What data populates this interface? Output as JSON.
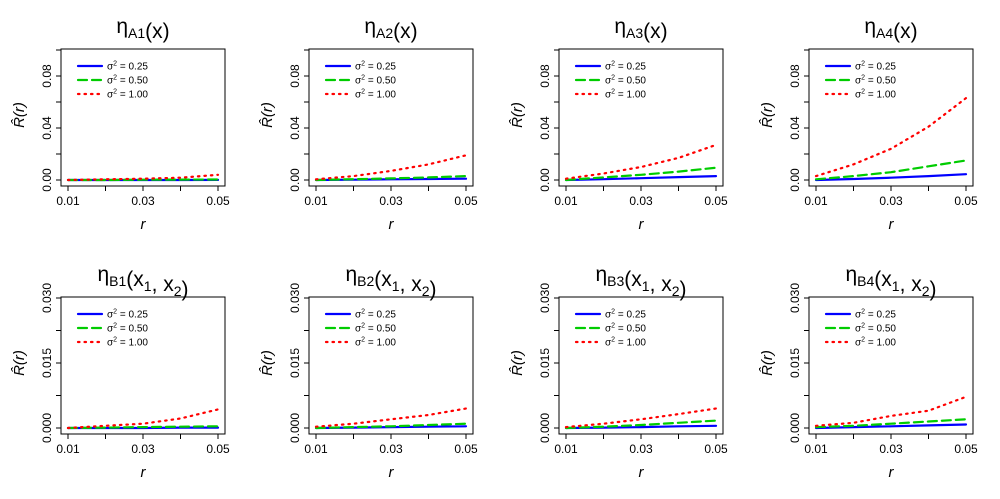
{
  "chart_data": [
    {
      "type": "line",
      "title": "ηA1(x)",
      "xlabel": "r",
      "ylabel": "R̂(r)",
      "xlim": [
        0.01,
        0.05
      ],
      "ylim": [
        0,
        0.1
      ],
      "xticks": [
        "0.01",
        "0.03",
        "0.05"
      ],
      "yticks": [
        "0.00",
        "0.04",
        "0.08"
      ],
      "legend_position": "top-left",
      "x": [
        0.01,
        0.02,
        0.03,
        0.04,
        0.05
      ],
      "series": [
        {
          "name": "σ² = 0.25",
          "color": "#0000ff",
          "dash": "solid",
          "values": [
            0.0,
            0.0,
            0.0,
            0.0,
            0.0001
          ]
        },
        {
          "name": "σ² = 0.50",
          "color": "#00cc00",
          "dash": "dashed",
          "values": [
            0.0,
            0.0,
            0.0002,
            0.0003,
            0.0004
          ]
        },
        {
          "name": "σ² = 1.00",
          "color": "#ff0000",
          "dash": "dotted",
          "values": [
            0.0,
            0.0005,
            0.001,
            0.0018,
            0.004
          ]
        }
      ]
    },
    {
      "type": "line",
      "title": "ηA2(x)",
      "xlabel": "r",
      "ylabel": "R̂(r)",
      "xlim": [
        0.01,
        0.05
      ],
      "ylim": [
        0,
        0.1
      ],
      "xticks": [
        "0.01",
        "0.03",
        "0.05"
      ],
      "yticks": [
        "0.00",
        "0.04",
        "0.08"
      ],
      "legend_position": "top-left",
      "x": [
        0.01,
        0.02,
        0.03,
        0.04,
        0.05
      ],
      "series": [
        {
          "name": "σ² = 0.25",
          "color": "#0000ff",
          "dash": "solid",
          "values": [
            0.0,
            0.0002,
            0.0005,
            0.0008,
            0.001
          ]
        },
        {
          "name": "σ² = 0.50",
          "color": "#00cc00",
          "dash": "dashed",
          "values": [
            0.0,
            0.0006,
            0.0012,
            0.002,
            0.003
          ]
        },
        {
          "name": "σ² = 1.00",
          "color": "#ff0000",
          "dash": "dotted",
          "values": [
            0.0005,
            0.003,
            0.007,
            0.012,
            0.019
          ]
        }
      ]
    },
    {
      "type": "line",
      "title": "ηA3(x)",
      "xlabel": "r",
      "ylabel": "R̂(r)",
      "xlim": [
        0.01,
        0.05
      ],
      "ylim": [
        0,
        0.1
      ],
      "xticks": [
        "0.01",
        "0.03",
        "0.05"
      ],
      "yticks": [
        "0.00",
        "0.04",
        "0.08"
      ],
      "legend_position": "top-left",
      "x": [
        0.01,
        0.02,
        0.03,
        0.04,
        0.05
      ],
      "series": [
        {
          "name": "σ² = 0.25",
          "color": "#0000ff",
          "dash": "solid",
          "values": [
            0.0,
            0.0006,
            0.0014,
            0.0022,
            0.003
          ]
        },
        {
          "name": "σ² = 0.50",
          "color": "#00cc00",
          "dash": "dashed",
          "values": [
            0.0,
            0.002,
            0.004,
            0.0065,
            0.0095
          ]
        },
        {
          "name": "σ² = 1.00",
          "color": "#ff0000",
          "dash": "dotted",
          "values": [
            0.001,
            0.005,
            0.01,
            0.017,
            0.027
          ]
        }
      ]
    },
    {
      "type": "line",
      "title": "ηA4(x)",
      "xlabel": "r",
      "ylabel": "R̂(r)",
      "xlim": [
        0.01,
        0.05
      ],
      "ylim": [
        0,
        0.1
      ],
      "xticks": [
        "0.01",
        "0.03",
        "0.05"
      ],
      "yticks": [
        "0.00",
        "0.04",
        "0.08"
      ],
      "legend_position": "top-left",
      "x": [
        0.01,
        0.02,
        0.03,
        0.04,
        0.05
      ],
      "series": [
        {
          "name": "σ² = 0.25",
          "color": "#0000ff",
          "dash": "solid",
          "values": [
            0.0,
            0.0008,
            0.0018,
            0.003,
            0.0045
          ]
        },
        {
          "name": "σ² = 0.50",
          "color": "#00cc00",
          "dash": "dashed",
          "values": [
            0.0005,
            0.003,
            0.006,
            0.0105,
            0.015
          ]
        },
        {
          "name": "σ² = 1.00",
          "color": "#ff0000",
          "dash": "dotted",
          "values": [
            0.003,
            0.012,
            0.024,
            0.041,
            0.063
          ]
        }
      ]
    },
    {
      "type": "line",
      "title": "ηB1(x1, x2)",
      "xlabel": "r",
      "ylabel": "R̂(r)",
      "xlim": [
        0.01,
        0.05
      ],
      "ylim": [
        0,
        0.03
      ],
      "xticks": [
        "0.01",
        "0.03",
        "0.05"
      ],
      "yticks": [
        "0.000",
        "0.015",
        "0.030"
      ],
      "legend_position": "top-left",
      "x": [
        0.01,
        0.02,
        0.03,
        0.04,
        0.05
      ],
      "series": [
        {
          "name": "σ² = 0.25",
          "color": "#0000ff",
          "dash": "solid",
          "values": [
            0.0,
            0.0,
            0.0,
            0.0001,
            0.0001
          ]
        },
        {
          "name": "σ² = 0.50",
          "color": "#00cc00",
          "dash": "dashed",
          "values": [
            0.0,
            0.0001,
            0.0002,
            0.0003,
            0.0004
          ]
        },
        {
          "name": "σ² = 1.00",
          "color": "#ff0000",
          "dash": "dotted",
          "values": [
            0.0,
            0.0005,
            0.001,
            0.0022,
            0.0043
          ]
        }
      ]
    },
    {
      "type": "line",
      "title": "ηB2(x1, x2)",
      "xlabel": "r",
      "ylabel": "R̂(r)",
      "xlim": [
        0.01,
        0.05
      ],
      "ylim": [
        0,
        0.03
      ],
      "xticks": [
        "0.01",
        "0.03",
        "0.05"
      ],
      "yticks": [
        "0.000",
        "0.015",
        "0.030"
      ],
      "legend_position": "top-left",
      "x": [
        0.01,
        0.02,
        0.03,
        0.04,
        0.05
      ],
      "series": [
        {
          "name": "σ² = 0.25",
          "color": "#0000ff",
          "dash": "solid",
          "values": [
            0.0,
            0.0001,
            0.0002,
            0.0003,
            0.0004
          ]
        },
        {
          "name": "σ² = 0.50",
          "color": "#00cc00",
          "dash": "dashed",
          "values": [
            0.0,
            0.0002,
            0.0004,
            0.0007,
            0.001
          ]
        },
        {
          "name": "σ² = 1.00",
          "color": "#ff0000",
          "dash": "dotted",
          "values": [
            0.0003,
            0.001,
            0.002,
            0.003,
            0.0045
          ]
        }
      ]
    },
    {
      "type": "line",
      "title": "ηB3(x1, x2)",
      "xlabel": "r",
      "ylabel": "R̂(r)",
      "xlim": [
        0.01,
        0.05
      ],
      "ylim": [
        0,
        0.03
      ],
      "xticks": [
        "0.01",
        "0.03",
        "0.05"
      ],
      "yticks": [
        "0.000",
        "0.015",
        "0.030"
      ],
      "legend_position": "top-left",
      "x": [
        0.01,
        0.02,
        0.03,
        0.04,
        0.05
      ],
      "series": [
        {
          "name": "σ² = 0.25",
          "color": "#0000ff",
          "dash": "solid",
          "values": [
            0.0,
            0.0001,
            0.0002,
            0.0004,
            0.0005
          ]
        },
        {
          "name": "σ² = 0.50",
          "color": "#00cc00",
          "dash": "dashed",
          "values": [
            0.0,
            0.0003,
            0.0007,
            0.0012,
            0.0017
          ]
        },
        {
          "name": "σ² = 1.00",
          "color": "#ff0000",
          "dash": "dotted",
          "values": [
            0.0002,
            0.001,
            0.002,
            0.0032,
            0.0045
          ]
        }
      ]
    },
    {
      "type": "line",
      "title": "ηB4(x1, x2)",
      "xlabel": "r",
      "ylabel": "R̂(r)",
      "xlim": [
        0.01,
        0.05
      ],
      "ylim": [
        0,
        0.03
      ],
      "xticks": [
        "0.01",
        "0.03",
        "0.05"
      ],
      "yticks": [
        "0.000",
        "0.015",
        "0.030"
      ],
      "legend_position": "top-left",
      "x": [
        0.01,
        0.02,
        0.03,
        0.04,
        0.05
      ],
      "series": [
        {
          "name": "σ² = 0.25",
          "color": "#0000ff",
          "dash": "solid",
          "values": [
            0.0,
            0.0002,
            0.0004,
            0.0006,
            0.0008
          ]
        },
        {
          "name": "σ² = 0.50",
          "color": "#00cc00",
          "dash": "dashed",
          "values": [
            0.0002,
            0.0005,
            0.001,
            0.0015,
            0.002
          ]
        },
        {
          "name": "σ² = 1.00",
          "color": "#ff0000",
          "dash": "dotted",
          "values": [
            0.0005,
            0.0012,
            0.0028,
            0.004,
            0.0072
          ]
        }
      ]
    }
  ]
}
